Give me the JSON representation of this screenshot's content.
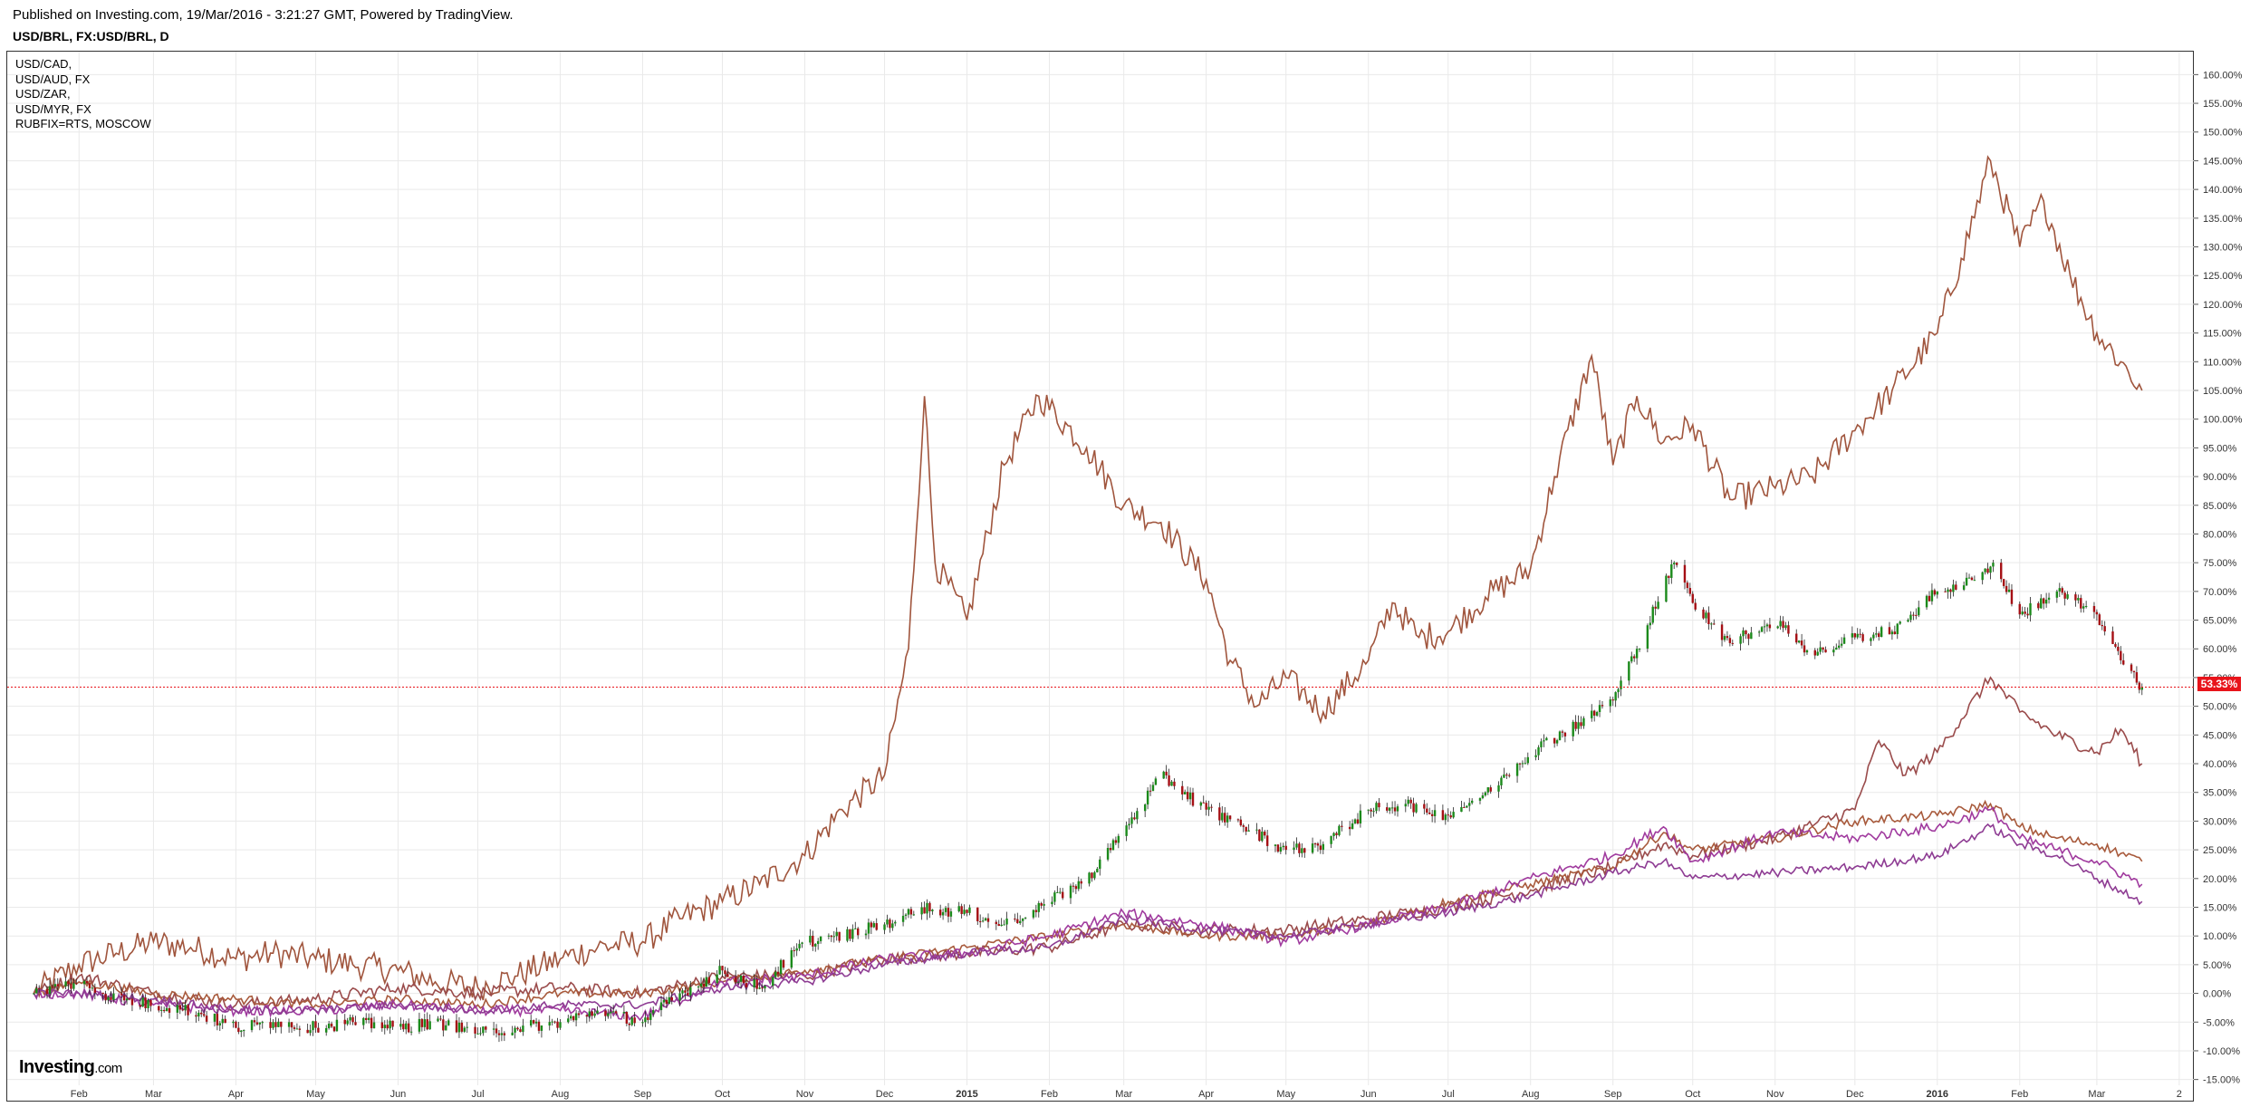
{
  "header": {
    "published": "Published on Investing.com, 19/Mar/2016 - 3:21:27 GMT, Powered by TradingView.",
    "symbol": "USD/BRL, FX:USD/BRL, D"
  },
  "legend": [
    "USD/CAD,",
    "USD/AUD, FX",
    "USD/ZAR,",
    "USD/MYR, FX",
    "RUBFIX=RTS, MOSCOW"
  ],
  "logo": {
    "brand": "Investing",
    "suffix": ".com"
  },
  "colors": {
    "rub": "#a0553d",
    "zar": "#9a4b4b",
    "cad": "#a85a3c",
    "aud": "#a03a9e",
    "myr": "#8e3c93",
    "candle_up": "#1b8a1b",
    "candle_down": "#a50f14",
    "last_price": "#e8141b"
  },
  "chart_data": {
    "type": "line",
    "main_series_style": "candlestick",
    "y_unit": "%",
    "ylim": [
      -16,
      164
    ],
    "y_ticks": [
      -15,
      -10,
      -5,
      0,
      5,
      10,
      15,
      20,
      25,
      30,
      35,
      40,
      45,
      50,
      55,
      60,
      65,
      70,
      75,
      80,
      85,
      90,
      95,
      100,
      105,
      110,
      115,
      120,
      125,
      130,
      135,
      140,
      145,
      150,
      155,
      160
    ],
    "x_ticks": [
      {
        "label": "Feb",
        "x": "2014-02-01"
      },
      {
        "label": "Mar",
        "x": "2014-03-01"
      },
      {
        "label": "Apr",
        "x": "2014-04-01"
      },
      {
        "label": "May",
        "x": "2014-05-01"
      },
      {
        "label": "Jun",
        "x": "2014-06-01"
      },
      {
        "label": "Jul",
        "x": "2014-07-01"
      },
      {
        "label": "Aug",
        "x": "2014-08-01"
      },
      {
        "label": "Sep",
        "x": "2014-09-01"
      },
      {
        "label": "Oct",
        "x": "2014-10-01"
      },
      {
        "label": "Nov",
        "x": "2014-11-01"
      },
      {
        "label": "Dec",
        "x": "2014-12-01"
      },
      {
        "label": "2015",
        "x": "2015-01-01",
        "bold": true
      },
      {
        "label": "Feb",
        "x": "2015-02-01"
      },
      {
        "label": "Mar",
        "x": "2015-03-01"
      },
      {
        "label": "Apr",
        "x": "2015-04-01"
      },
      {
        "label": "May",
        "x": "2015-05-01"
      },
      {
        "label": "Jun",
        "x": "2015-06-01"
      },
      {
        "label": "Jul",
        "x": "2015-07-01"
      },
      {
        "label": "Aug",
        "x": "2015-08-01"
      },
      {
        "label": "Sep",
        "x": "2015-09-01"
      },
      {
        "label": "Oct",
        "x": "2015-10-01"
      },
      {
        "label": "Nov",
        "x": "2015-11-01"
      },
      {
        "label": "Dec",
        "x": "2015-12-01"
      },
      {
        "label": "2016",
        "x": "2016-01-01",
        "bold": true
      },
      {
        "label": "Feb",
        "x": "2016-02-01"
      },
      {
        "label": "Mar",
        "x": "2016-03-01"
      },
      {
        "label": "2",
        "x": "2016-04-01"
      }
    ],
    "last_value_label": "53.33%",
    "last_value": 53.33,
    "series": [
      {
        "key": "usdbrl",
        "style": "candlestick",
        "points": [
          [
            "2014-01-15",
            0
          ],
          [
            "2014-02-01",
            2
          ],
          [
            "2014-02-15",
            -1
          ],
          [
            "2014-03-01",
            -2
          ],
          [
            "2014-03-15",
            -3
          ],
          [
            "2014-04-01",
            -6
          ],
          [
            "2014-04-15",
            -5
          ],
          [
            "2014-05-01",
            -6
          ],
          [
            "2014-05-15",
            -5
          ],
          [
            "2014-06-01",
            -6
          ],
          [
            "2014-06-15",
            -5
          ],
          [
            "2014-07-01",
            -7
          ],
          [
            "2014-07-15",
            -6
          ],
          [
            "2014-08-01",
            -5
          ],
          [
            "2014-08-15",
            -3
          ],
          [
            "2014-09-01",
            -5
          ],
          [
            "2014-09-15",
            0
          ],
          [
            "2014-10-01",
            4
          ],
          [
            "2014-10-15",
            1
          ],
          [
            "2014-11-01",
            9
          ],
          [
            "2014-11-15",
            10
          ],
          [
            "2014-12-01",
            12
          ],
          [
            "2014-12-15",
            15
          ],
          [
            "2015-01-01",
            14
          ],
          [
            "2015-01-15",
            12
          ],
          [
            "2015-02-01",
            16
          ],
          [
            "2015-02-15",
            20
          ],
          [
            "2015-03-01",
            28
          ],
          [
            "2015-03-15",
            38
          ],
          [
            "2015-04-01",
            32
          ],
          [
            "2015-04-15",
            29
          ],
          [
            "2015-05-01",
            25
          ],
          [
            "2015-05-15",
            26
          ],
          [
            "2015-06-01",
            32
          ],
          [
            "2015-06-15",
            33
          ],
          [
            "2015-07-01",
            31
          ],
          [
            "2015-07-15",
            35
          ],
          [
            "2015-08-01",
            42
          ],
          [
            "2015-08-15",
            46
          ],
          [
            "2015-09-01",
            51
          ],
          [
            "2015-09-10",
            60
          ],
          [
            "2015-09-24",
            75
          ],
          [
            "2015-10-01",
            68
          ],
          [
            "2015-10-15",
            61
          ],
          [
            "2015-11-01",
            65
          ],
          [
            "2015-11-15",
            59
          ],
          [
            "2015-12-01",
            62
          ],
          [
            "2015-12-15",
            63
          ],
          [
            "2016-01-01",
            70
          ],
          [
            "2016-01-15",
            72
          ],
          [
            "2016-01-22",
            75
          ],
          [
            "2016-02-01",
            66
          ],
          [
            "2016-02-15",
            70
          ],
          [
            "2016-03-01",
            66
          ],
          [
            "2016-03-10",
            58
          ],
          [
            "2016-03-18",
            53.33
          ]
        ]
      },
      {
        "key": "rubfix",
        "style": "line",
        "points": [
          [
            "2014-01-15",
            0
          ],
          [
            "2014-02-01",
            5
          ],
          [
            "2014-02-15",
            7
          ],
          [
            "2014-03-01",
            9
          ],
          [
            "2014-03-15",
            8
          ],
          [
            "2014-04-01",
            6
          ],
          [
            "2014-04-15",
            7
          ],
          [
            "2014-05-01",
            6
          ],
          [
            "2014-05-15",
            5
          ],
          [
            "2014-06-01",
            4
          ],
          [
            "2014-06-15",
            2
          ],
          [
            "2014-07-01",
            1
          ],
          [
            "2014-07-15",
            3
          ],
          [
            "2014-08-01",
            6
          ],
          [
            "2014-08-15",
            8
          ],
          [
            "2014-09-01",
            9
          ],
          [
            "2014-09-15",
            13
          ],
          [
            "2014-10-01",
            16
          ],
          [
            "2014-10-15",
            19
          ],
          [
            "2014-11-01",
            24
          ],
          [
            "2014-11-15",
            32
          ],
          [
            "2014-12-01",
            38
          ],
          [
            "2014-12-10",
            60
          ],
          [
            "2014-12-16",
            104
          ],
          [
            "2014-12-20",
            75
          ],
          [
            "2015-01-01",
            65
          ],
          [
            "2015-01-15",
            92
          ],
          [
            "2015-01-28",
            104
          ],
          [
            "2015-02-15",
            95
          ],
          [
            "2015-03-01",
            85
          ],
          [
            "2015-03-15",
            82
          ],
          [
            "2015-04-01",
            72
          ],
          [
            "2015-04-10",
            58
          ],
          [
            "2015-04-20",
            50
          ],
          [
            "2015-05-01",
            55
          ],
          [
            "2015-05-15",
            49
          ],
          [
            "2015-06-01",
            58
          ],
          [
            "2015-06-10",
            68
          ],
          [
            "2015-06-20",
            62
          ],
          [
            "2015-07-01",
            63
          ],
          [
            "2015-07-15",
            69
          ],
          [
            "2015-08-01",
            74
          ],
          [
            "2015-08-10",
            90
          ],
          [
            "2015-08-24",
            111
          ],
          [
            "2015-09-01",
            92
          ],
          [
            "2015-09-10",
            104
          ],
          [
            "2015-09-20",
            96
          ],
          [
            "2015-10-01",
            99
          ],
          [
            "2015-10-15",
            86
          ],
          [
            "2015-11-01",
            88
          ],
          [
            "2015-11-15",
            90
          ],
          [
            "2015-12-01",
            98
          ],
          [
            "2015-12-15",
            105
          ],
          [
            "2016-01-01",
            115
          ],
          [
            "2016-01-10",
            128
          ],
          [
            "2016-01-21",
            145
          ],
          [
            "2016-02-01",
            130
          ],
          [
            "2016-02-10",
            138
          ],
          [
            "2016-02-20",
            125
          ],
          [
            "2016-03-01",
            115
          ],
          [
            "2016-03-10",
            110
          ],
          [
            "2016-03-18",
            105
          ]
        ]
      },
      {
        "key": "usdzar",
        "style": "line",
        "points": [
          [
            "2014-01-15",
            0
          ],
          [
            "2014-02-01",
            3
          ],
          [
            "2014-03-01",
            0
          ],
          [
            "2014-04-01",
            -2
          ],
          [
            "2014-05-01",
            -1
          ],
          [
            "2014-06-01",
            1
          ],
          [
            "2014-07-01",
            0
          ],
          [
            "2014-08-01",
            1
          ],
          [
            "2014-09-01",
            0
          ],
          [
            "2014-10-01",
            3
          ],
          [
            "2014-11-01",
            3
          ],
          [
            "2014-12-01",
            6
          ],
          [
            "2015-01-01",
            7
          ],
          [
            "2015-02-01",
            8
          ],
          [
            "2015-03-01",
            12
          ],
          [
            "2015-04-01",
            11
          ],
          [
            "2015-05-01",
            11
          ],
          [
            "2015-06-01",
            13
          ],
          [
            "2015-07-01",
            15
          ],
          [
            "2015-08-01",
            18
          ],
          [
            "2015-09-01",
            22
          ],
          [
            "2015-09-20",
            26
          ],
          [
            "2015-10-01",
            24
          ],
          [
            "2015-11-01",
            27
          ],
          [
            "2015-12-01",
            32
          ],
          [
            "2015-12-10",
            44
          ],
          [
            "2015-12-20",
            38
          ],
          [
            "2016-01-01",
            42
          ],
          [
            "2016-01-21",
            55
          ],
          [
            "2016-02-01",
            49
          ],
          [
            "2016-02-15",
            45
          ],
          [
            "2016-03-01",
            42
          ],
          [
            "2016-03-10",
            46
          ],
          [
            "2016-03-18",
            40
          ]
        ]
      },
      {
        "key": "usdcad",
        "style": "line",
        "points": [
          [
            "2014-01-15",
            0
          ],
          [
            "2014-02-01",
            2
          ],
          [
            "2014-03-01",
            0
          ],
          [
            "2014-04-01",
            -1
          ],
          [
            "2014-05-01",
            -2
          ],
          [
            "2014-06-01",
            -1
          ],
          [
            "2014-07-01",
            -2
          ],
          [
            "2014-08-01",
            0
          ],
          [
            "2014-09-01",
            0
          ],
          [
            "2014-10-01",
            2
          ],
          [
            "2014-11-01",
            4
          ],
          [
            "2014-12-01",
            6
          ],
          [
            "2015-01-01",
            8
          ],
          [
            "2015-02-01",
            10
          ],
          [
            "2015-03-01",
            12
          ],
          [
            "2015-04-01",
            10
          ],
          [
            "2015-05-01",
            10
          ],
          [
            "2015-06-01",
            12
          ],
          [
            "2015-07-01",
            16
          ],
          [
            "2015-08-01",
            19
          ],
          [
            "2015-09-01",
            22
          ],
          [
            "2015-09-20",
            28
          ],
          [
            "2015-10-01",
            25
          ],
          [
            "2015-11-01",
            27
          ],
          [
            "2015-12-01",
            30
          ],
          [
            "2016-01-01",
            31
          ],
          [
            "2016-01-21",
            33
          ],
          [
            "2016-02-01",
            29
          ],
          [
            "2016-02-15",
            27
          ],
          [
            "2016-03-01",
            26
          ],
          [
            "2016-03-18",
            23
          ]
        ]
      },
      {
        "key": "usdaud",
        "style": "line",
        "points": [
          [
            "2014-01-15",
            0
          ],
          [
            "2014-02-01",
            0
          ],
          [
            "2014-03-01",
            -2
          ],
          [
            "2014-04-01",
            -3
          ],
          [
            "2014-05-01",
            -3
          ],
          [
            "2014-06-01",
            -2
          ],
          [
            "2014-07-01",
            -3
          ],
          [
            "2014-08-01",
            -3
          ],
          [
            "2014-09-01",
            -4
          ],
          [
            "2014-10-01",
            2
          ],
          [
            "2014-11-01",
            3
          ],
          [
            "2014-12-01",
            6
          ],
          [
            "2015-01-01",
            7
          ],
          [
            "2015-02-01",
            10
          ],
          [
            "2015-03-01",
            14
          ],
          [
            "2015-04-01",
            12
          ],
          [
            "2015-05-01",
            9
          ],
          [
            "2015-06-01",
            12
          ],
          [
            "2015-07-01",
            15
          ],
          [
            "2015-08-01",
            20
          ],
          [
            "2015-09-01",
            24
          ],
          [
            "2015-09-20",
            29
          ],
          [
            "2015-10-01",
            23
          ],
          [
            "2015-11-01",
            28
          ],
          [
            "2015-12-01",
            27
          ],
          [
            "2016-01-01",
            29
          ],
          [
            "2016-01-21",
            32
          ],
          [
            "2016-02-01",
            27
          ],
          [
            "2016-02-15",
            25
          ],
          [
            "2016-03-01",
            23
          ],
          [
            "2016-03-18",
            19
          ]
        ]
      },
      {
        "key": "usdmyr",
        "style": "line",
        "points": [
          [
            "2014-01-15",
            0
          ],
          [
            "2014-02-01",
            0
          ],
          [
            "2014-03-01",
            -1
          ],
          [
            "2014-04-01",
            -3
          ],
          [
            "2014-05-01",
            -3
          ],
          [
            "2014-06-01",
            -2
          ],
          [
            "2014-07-01",
            -3
          ],
          [
            "2014-08-01",
            -2
          ],
          [
            "2014-09-01",
            -2
          ],
          [
            "2014-10-01",
            1
          ],
          [
            "2014-11-01",
            2
          ],
          [
            "2014-12-01",
            5
          ],
          [
            "2015-01-01",
            7
          ],
          [
            "2015-02-01",
            8
          ],
          [
            "2015-03-01",
            13
          ],
          [
            "2015-04-01",
            11
          ],
          [
            "2015-05-01",
            10
          ],
          [
            "2015-06-01",
            12
          ],
          [
            "2015-07-01",
            14
          ],
          [
            "2015-08-01",
            17
          ],
          [
            "2015-09-01",
            21
          ],
          [
            "2015-09-20",
            23
          ],
          [
            "2015-10-01",
            20
          ],
          [
            "2015-11-01",
            21
          ],
          [
            "2015-12-01",
            22
          ],
          [
            "2016-01-01",
            24
          ],
          [
            "2016-01-21",
            29
          ],
          [
            "2016-02-01",
            26
          ],
          [
            "2016-02-15",
            24
          ],
          [
            "2016-03-01",
            20
          ],
          [
            "2016-03-18",
            16
          ]
        ]
      }
    ]
  }
}
